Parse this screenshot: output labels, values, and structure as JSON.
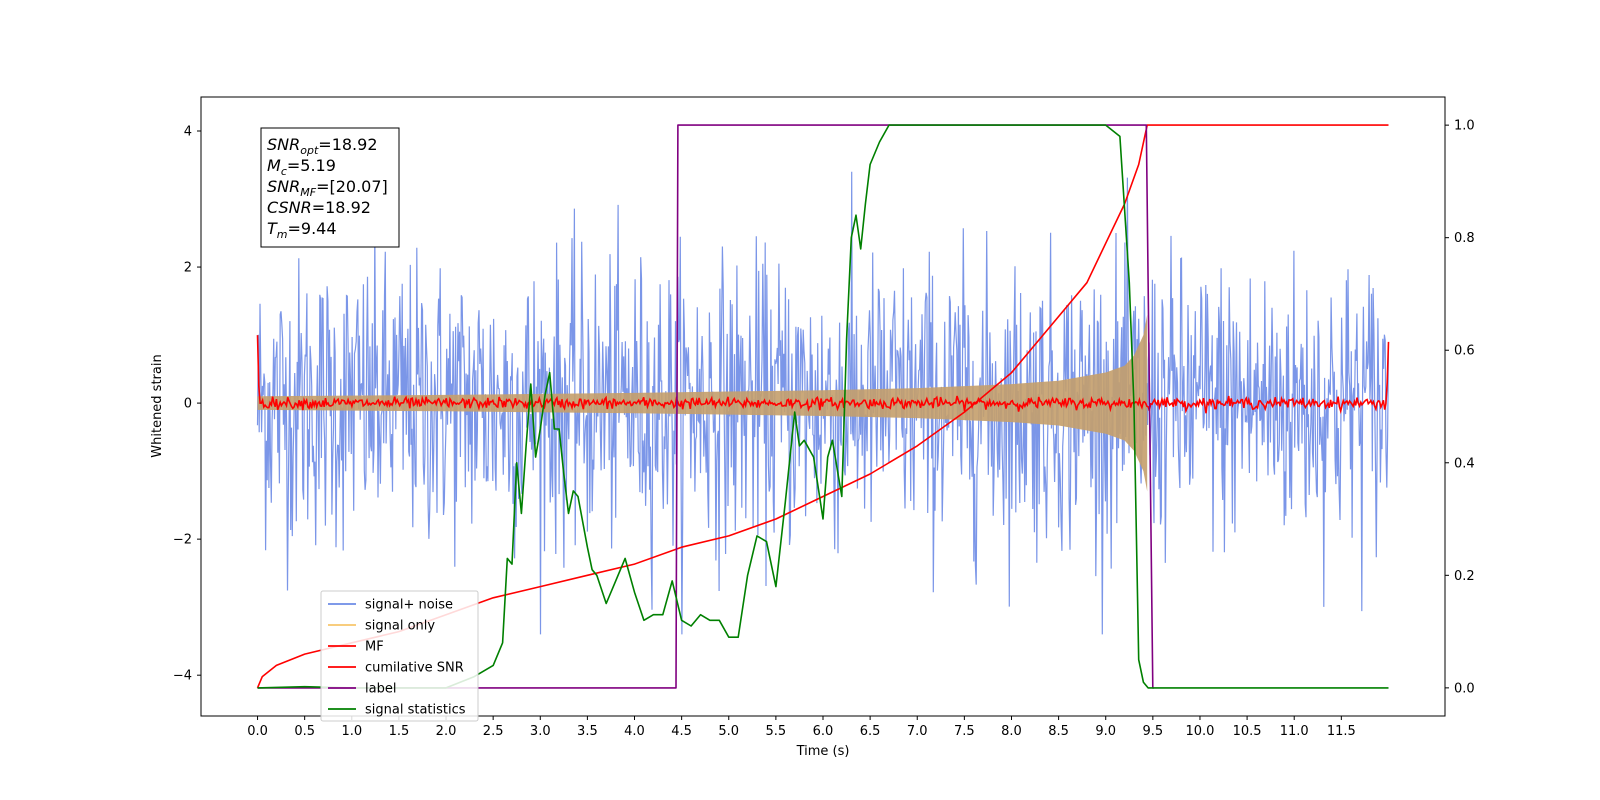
{
  "chart_data": {
    "type": "line",
    "xlabel": "Time (s)",
    "ylabel": "Whitened strain",
    "xlim": [
      -0.6,
      12.6
    ],
    "ylim": [
      -4.6,
      4.5
    ],
    "ylim_right": [
      -0.05,
      1.05
    ],
    "grid": false,
    "legend_position": "lower-left",
    "x_ticks": [
      "0.0",
      "0.5",
      "1.0",
      "1.5",
      "2.0",
      "2.5",
      "3.0",
      "3.5",
      "4.0",
      "4.5",
      "5.0",
      "5.5",
      "6.0",
      "6.5",
      "7.0",
      "7.5",
      "8.0",
      "8.5",
      "9.0",
      "9.5",
      "10.0",
      "10.5",
      "11.0",
      "11.5"
    ],
    "y_ticks_left": [
      "4",
      "2",
      "0",
      "−2",
      "−4"
    ],
    "y_ticks_right": [
      "1.0",
      "0.8",
      "0.6",
      "0.4",
      "0.2",
      "0.0"
    ],
    "annotation": {
      "lines": [
        {
          "var": "SNR",
          "sub": "opt",
          "value": "=18.92"
        },
        {
          "var": "M",
          "sub": "c",
          "value": "=5.19"
        },
        {
          "var": "SNR",
          "sub": "MF",
          "value": "=[20.07]"
        },
        {
          "var": "CSNR",
          "sub": "",
          "value": "=18.92"
        },
        {
          "var": "T",
          "sub": "m",
          "value": "=9.44"
        }
      ]
    },
    "series": [
      {
        "name": "signal+ noise",
        "color": "#6d8be6",
        "axis": "left",
        "description": "noise band",
        "approx_range": [
          -3.4,
          3.4
        ]
      },
      {
        "name": "signal only",
        "color": "#f5b041",
        "axis": "left",
        "description": "chirp envelope growing toward merger",
        "envelope_x": [
          0.0,
          2.0,
          4.0,
          6.0,
          7.0,
          8.0,
          8.5,
          9.0,
          9.2,
          9.3,
          9.4,
          9.44
        ],
        "envelope_y": [
          0.1,
          0.12,
          0.15,
          0.19,
          0.22,
          0.28,
          0.33,
          0.45,
          0.55,
          0.7,
          1.0,
          1.3
        ]
      },
      {
        "name": "MF",
        "color": "#ff0000",
        "axis": "left",
        "description": "matched filter output near zero, edge spikes to ~1.0"
      },
      {
        "name": "cumilative SNR",
        "color": "#ff0000",
        "axis": "right",
        "x": [
          0.0,
          0.05,
          0.2,
          0.5,
          1.0,
          1.5,
          2.0,
          2.5,
          3.0,
          3.5,
          4.0,
          4.5,
          5.0,
          5.5,
          6.0,
          6.5,
          7.0,
          7.5,
          8.0,
          8.5,
          8.8,
          9.0,
          9.2,
          9.35,
          9.44,
          12.0
        ],
        "y": [
          0.0,
          0.02,
          0.04,
          0.06,
          0.08,
          0.1,
          0.13,
          0.16,
          0.18,
          0.2,
          0.22,
          0.25,
          0.27,
          0.3,
          0.34,
          0.38,
          0.43,
          0.49,
          0.56,
          0.66,
          0.72,
          0.79,
          0.86,
          0.93,
          1.0,
          1.0
        ]
      },
      {
        "name": "label",
        "color": "#800080",
        "axis": "right",
        "x": [
          0.0,
          4.44,
          4.46,
          9.43,
          9.5,
          9.51
        ],
        "y": [
          0.0,
          0.0,
          1.0,
          1.0,
          0.0,
          0.0
        ]
      },
      {
        "name": "signal statistics",
        "color": "#008000",
        "axis": "right",
        "x": [
          0.0,
          0.5,
          1.0,
          1.5,
          2.0,
          2.3,
          2.5,
          2.6,
          2.65,
          2.7,
          2.75,
          2.8,
          2.85,
          2.9,
          2.95,
          3.0,
          3.05,
          3.1,
          3.15,
          3.2,
          3.25,
          3.3,
          3.35,
          3.4,
          3.5,
          3.55,
          3.6,
          3.7,
          3.8,
          3.9,
          4.0,
          4.1,
          4.2,
          4.3,
          4.4,
          4.5,
          4.6,
          4.7,
          4.8,
          4.9,
          5.0,
          5.1,
          5.2,
          5.3,
          5.4,
          5.5,
          5.6,
          5.7,
          5.75,
          5.8,
          5.9,
          6.0,
          6.05,
          6.1,
          6.2,
          6.25,
          6.3,
          6.35,
          6.4,
          6.45,
          6.5,
          6.6,
          6.7,
          6.8,
          7.0,
          7.5,
          8.0,
          8.5,
          9.0,
          9.15,
          9.25,
          9.3,
          9.35,
          9.4,
          9.45,
          9.5,
          12.0
        ],
        "y": [
          0.0,
          0.002,
          0.0,
          0.0,
          0.0,
          0.02,
          0.04,
          0.08,
          0.23,
          0.22,
          0.4,
          0.31,
          0.43,
          0.54,
          0.41,
          0.46,
          0.52,
          0.56,
          0.46,
          0.46,
          0.38,
          0.31,
          0.35,
          0.34,
          0.25,
          0.21,
          0.2,
          0.15,
          0.19,
          0.23,
          0.17,
          0.12,
          0.13,
          0.13,
          0.19,
          0.12,
          0.11,
          0.13,
          0.12,
          0.12,
          0.09,
          0.09,
          0.2,
          0.27,
          0.26,
          0.18,
          0.33,
          0.49,
          0.43,
          0.44,
          0.41,
          0.3,
          0.41,
          0.44,
          0.34,
          0.62,
          0.8,
          0.84,
          0.78,
          0.86,
          0.93,
          0.97,
          1.0,
          1.0,
          1.0,
          1.0,
          1.0,
          1.0,
          1.0,
          0.98,
          0.72,
          0.5,
          0.05,
          0.01,
          0.0,
          0.0,
          0.0
        ]
      }
    ]
  }
}
